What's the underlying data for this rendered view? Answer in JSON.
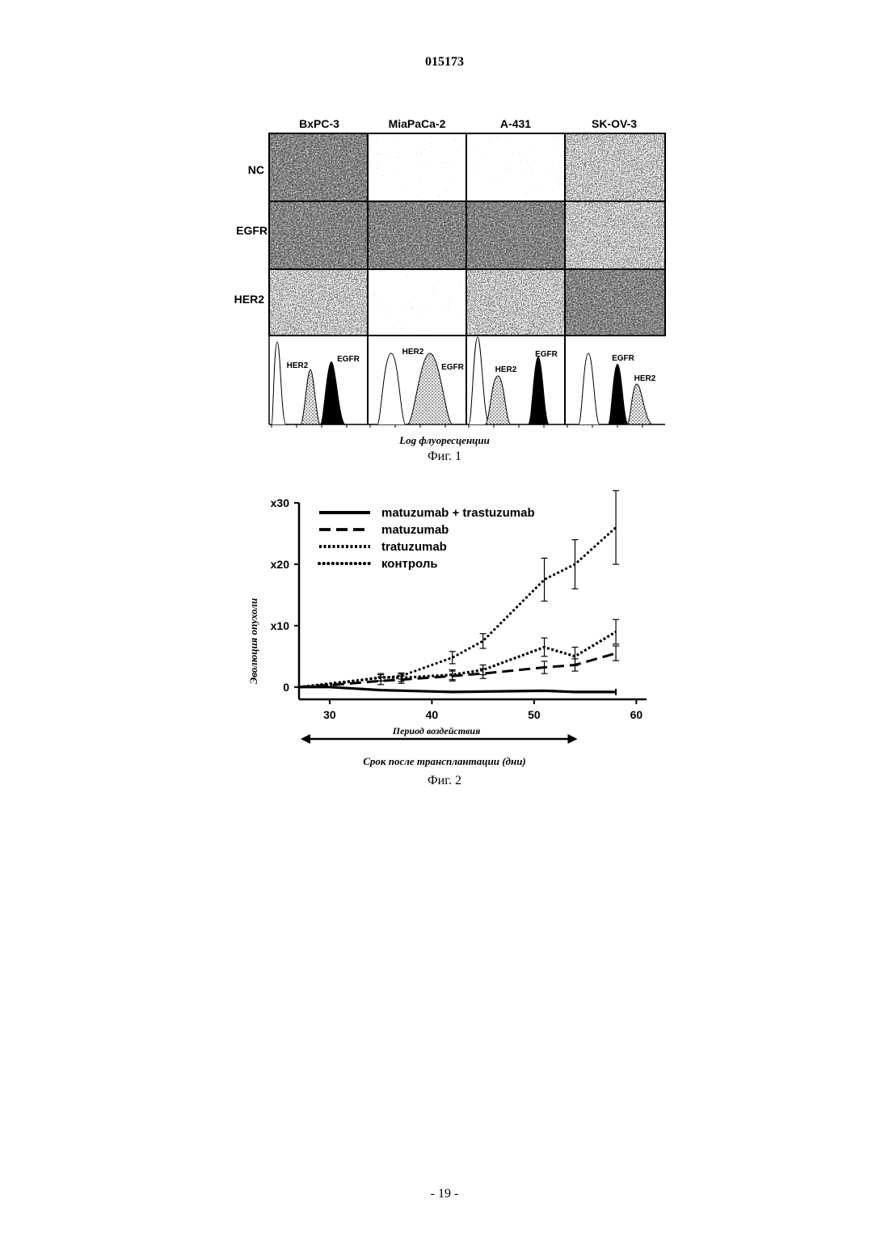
{
  "header": {
    "doc_number": "015173"
  },
  "figure1": {
    "columns": [
      "BxPC-3",
      "MiaPaCa-2",
      "A-431",
      "SK-OV-3"
    ],
    "rows": [
      "NC",
      "EGFR",
      "HER2"
    ],
    "hist_labels": {
      "her2": "HER2",
      "egfr": "EGFR"
    },
    "xlabel": "Log флуоресценции",
    "caption": "Фиг. 1"
  },
  "figure2": {
    "caption": "Фиг. 2",
    "chart_data": {
      "type": "line",
      "ylabel": "Эволюция опухоли",
      "xlabel": "Срок после трансплантации (дни)",
      "annotation": "Период воздействия",
      "xlim": [
        27,
        61
      ],
      "ylim": [
        -2,
        30
      ],
      "x_ticks": [
        "30",
        "40",
        "50",
        "60"
      ],
      "y_ticks": [
        "0",
        "x10",
        "x20",
        "x30"
      ],
      "treatment_period": [
        27,
        54
      ],
      "series": [
        {
          "name": "matuzumab + trastuzumab",
          "style": "solid",
          "x": [
            27,
            30,
            35,
            42,
            51,
            54,
            58
          ],
          "y": [
            0,
            0,
            -0.5,
            -0.8,
            -0.6,
            -0.8,
            -0.8
          ],
          "err": [
            0,
            0,
            0,
            0,
            0,
            0,
            0
          ]
        },
        {
          "name": "matuzumab",
          "style": "dashed",
          "x": [
            27,
            30,
            35,
            37,
            42,
            45,
            51,
            54,
            58
          ],
          "y": [
            0,
            0.3,
            1.0,
            1.2,
            1.8,
            2.2,
            3.2,
            3.6,
            5.5
          ],
          "err": [
            0,
            0,
            0.6,
            0.6,
            0.8,
            0.8,
            1.0,
            1.0,
            1.2
          ]
        },
        {
          "name": "tratuzumab",
          "style": "dotted-dense",
          "x": [
            27,
            30,
            35,
            37,
            42,
            45,
            51,
            54,
            58
          ],
          "y": [
            0,
            0.4,
            1.6,
            1.5,
            2.0,
            2.8,
            6.5,
            5.0,
            9.0
          ],
          "err": [
            0,
            0,
            0.6,
            0.6,
            0.8,
            0.8,
            1.5,
            1.5,
            2.0
          ]
        },
        {
          "name": "контроль",
          "style": "dotted-sparse",
          "x": [
            27,
            30,
            35,
            37,
            42,
            45,
            51,
            54,
            58
          ],
          "y": [
            0,
            0.6,
            1.5,
            1.8,
            4.8,
            7.5,
            17.5,
            20.0,
            26.0
          ],
          "err": [
            0,
            0,
            0.5,
            0.5,
            1.0,
            1.2,
            3.5,
            4.0,
            6.0
          ]
        }
      ]
    }
  },
  "footer": {
    "page_label": "- 19 -"
  }
}
